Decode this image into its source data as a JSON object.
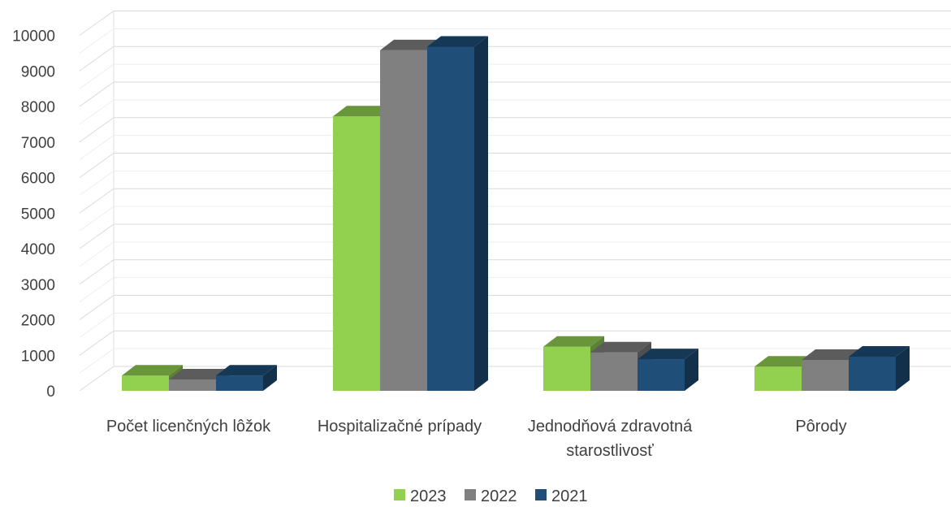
{
  "chart_data": {
    "type": "bar",
    "style": "3d-clustered-column",
    "categories": [
      [
        "Počet licenčných lôžok"
      ],
      [
        "Hospitalizačné prípady"
      ],
      [
        "Jednodňová zdravotná",
        "starostlivosť"
      ],
      [
        "Pôrody"
      ]
    ],
    "series": [
      {
        "name": "2023",
        "color": "#92d050",
        "values": [
          430,
          7720,
          1240,
          680
        ]
      },
      {
        "name": "2022",
        "color": "#808080",
        "values": [
          320,
          9580,
          1080,
          870
        ]
      },
      {
        "name": "2021",
        "color": "#1f4e79",
        "values": [
          430,
          9680,
          890,
          960
        ]
      }
    ],
    "yticks": [
      "0",
      "1000",
      "2000",
      "3000",
      "4000",
      "5000",
      "6000",
      "7000",
      "8000",
      "9000",
      "10000"
    ],
    "ylim": [
      0,
      10000
    ],
    "grid": true,
    "legend_position": "bottom"
  }
}
